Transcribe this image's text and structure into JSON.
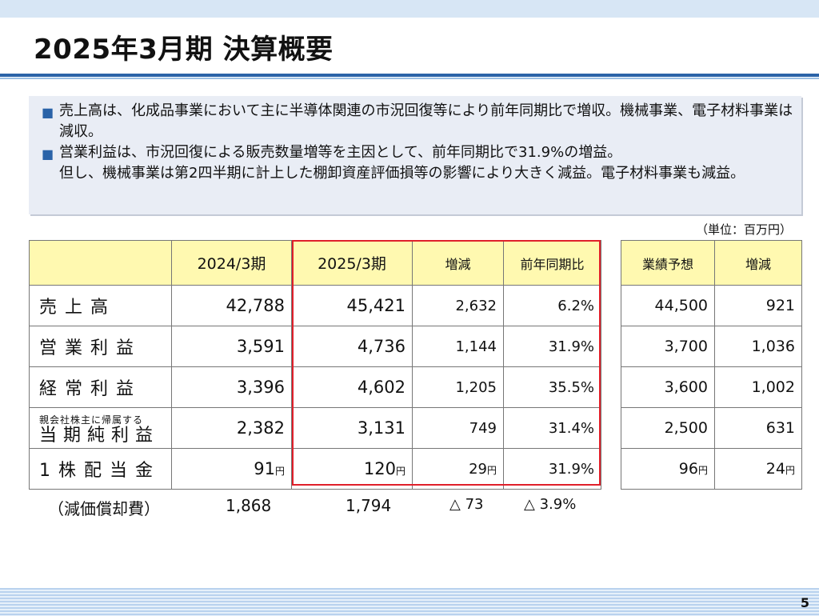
{
  "title": "2025年3月期 決算概要",
  "summary": {
    "bullet1": "売上高は、化成品事業において主に半導体関連の市況回復等により前年同期比で増収。機械事業、電子材料事業は減収。",
    "bullet2_line1": "営業利益は、市況回復による販売数量増等を主因として、前年同期比で31.9%の増益。",
    "bullet2_line2": "但し、機械事業は第2四半期に計上した棚卸資産評価損等の影響により大きく減益。電子材料事業も減益。"
  },
  "unit": "（単位：百万円）",
  "table": {
    "headers": [
      "",
      "2024/3期",
      "2025/3期",
      "増減",
      "前年同期比"
    ],
    "rows": [
      {
        "label": "売上高",
        "prev": "42,788",
        "curr": "45,421",
        "diff": "2,632",
        "ratio": "6.2%"
      },
      {
        "label": "営業利益",
        "prev": "3,591",
        "curr": "4,736",
        "diff": "1,144",
        "ratio": "31.9%"
      },
      {
        "label": "経常利益",
        "prev": "3,396",
        "curr": "4,602",
        "diff": "1,205",
        "ratio": "35.5%"
      },
      {
        "label_small": "親会社株主に帰属する",
        "label": "当期純利益",
        "prev": "2,382",
        "curr": "3,131",
        "diff": "749",
        "ratio": "31.4%"
      },
      {
        "label": "1株配当金",
        "prev": "91",
        "curr": "120",
        "diff": "29",
        "ratio": "31.9%",
        "unit": "円"
      }
    ]
  },
  "forecast": {
    "headers": [
      "業績予想",
      "増減"
    ],
    "rows": [
      {
        "forecast": "44,500",
        "diff": "921"
      },
      {
        "forecast": "3,700",
        "diff": "1,036"
      },
      {
        "forecast": "3,600",
        "diff": "1,002"
      },
      {
        "forecast": "2,500",
        "diff": "631"
      },
      {
        "forecast": "96",
        "diff": "24",
        "unit": "円"
      }
    ]
  },
  "depreciation": {
    "label": "（減価償却費）",
    "prev": "1,868",
    "curr": "1,794",
    "diff": "△ 73",
    "ratio": "△ 3.9%"
  },
  "page_number": "5",
  "bullet_mark": "■"
}
